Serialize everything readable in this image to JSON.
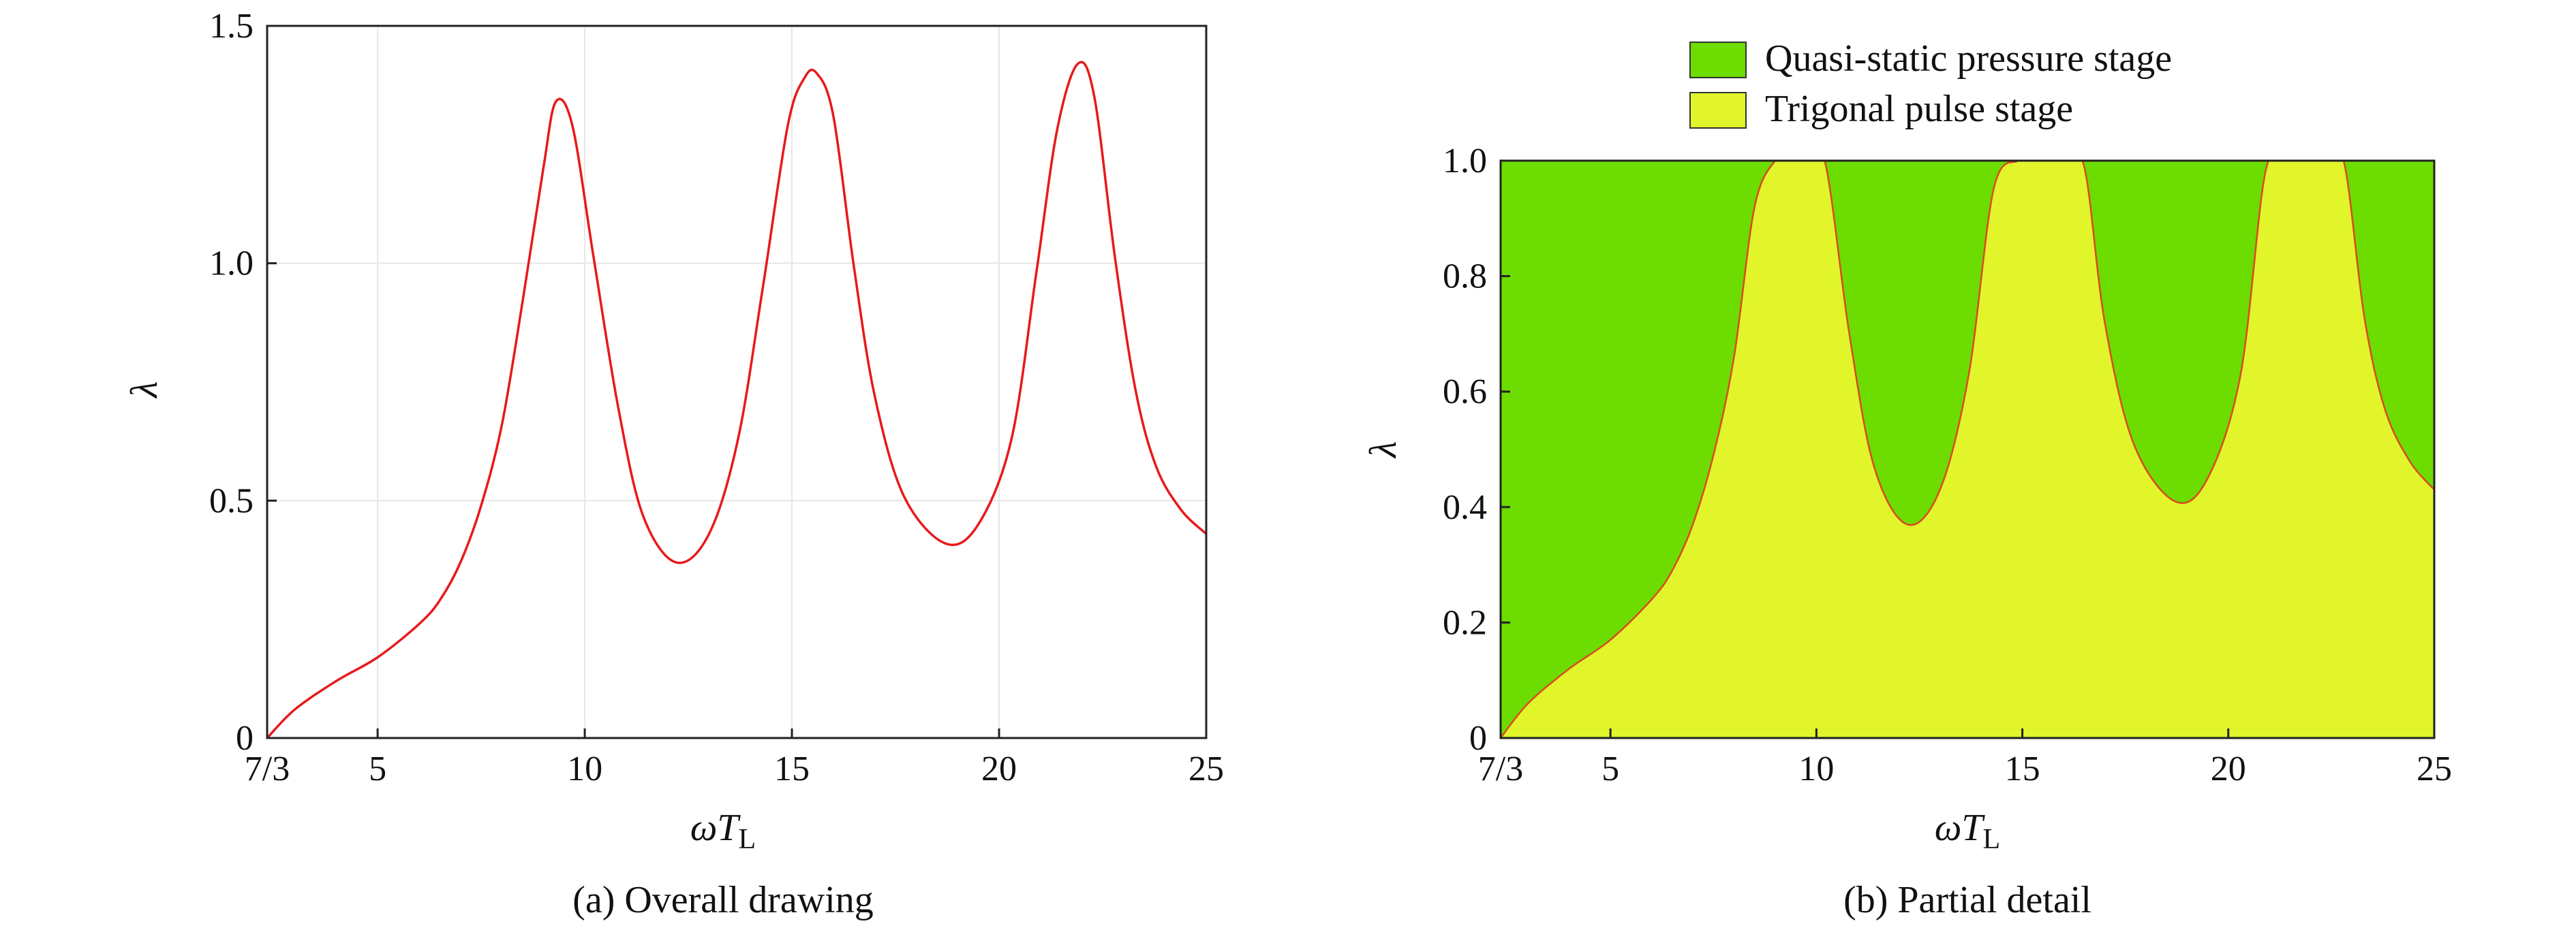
{
  "chart_data": [
    {
      "type": "line",
      "caption": "(a) Overall drawing",
      "xlabel_main": "ωT",
      "xlabel_sub": "L",
      "ylabel": "λ",
      "xlim": [
        2.3333,
        25
      ],
      "ylim": [
        0,
        1.5
      ],
      "xticks": [
        {
          "v": 2.3333,
          "label": "7/3"
        },
        {
          "v": 5,
          "label": "5"
        },
        {
          "v": 10,
          "label": "10"
        },
        {
          "v": 15,
          "label": "15"
        },
        {
          "v": 20,
          "label": "20"
        },
        {
          "v": 25,
          "label": "25"
        }
      ],
      "yticks": [
        {
          "v": 0,
          "label": "0"
        },
        {
          "v": 0.5,
          "label": "0.5"
        },
        {
          "v": 1.0,
          "label": "1.0"
        },
        {
          "v": 1.5,
          "label": "1.5"
        }
      ],
      "grid": true,
      "line_color": "#e8191b",
      "series": [
        {
          "x": [
            2.3333,
            3,
            4,
            5,
            6,
            6.5,
            7,
            7.5,
            8,
            8.5,
            9,
            9.3,
            9.7,
            10.2,
            10.8,
            11.4,
            12.2,
            13.0,
            13.7,
            14.3,
            14.9,
            15.3,
            15.6,
            16.0,
            16.5,
            17.0,
            17.7,
            18.7,
            19.5,
            20.3,
            20.9,
            21.4,
            21.9,
            22.3,
            22.8,
            23.3,
            23.8,
            24.4,
            25
          ],
          "y": [
            0,
            0.06,
            0.12,
            0.17,
            0.24,
            0.29,
            0.37,
            0.49,
            0.66,
            0.92,
            1.2,
            1.34,
            1.29,
            1.02,
            0.7,
            0.47,
            0.37,
            0.43,
            0.63,
            0.95,
            1.29,
            1.39,
            1.4,
            1.31,
            0.99,
            0.72,
            0.51,
            0.41,
            0.45,
            0.63,
            0.98,
            1.28,
            1.42,
            1.35,
            1.01,
            0.73,
            0.57,
            0.48,
            0.43
          ]
        }
      ]
    },
    {
      "type": "area",
      "caption": "(b) Partial detail",
      "xlabel_main": "ωT",
      "xlabel_sub": "L",
      "ylabel": "λ",
      "xlim": [
        2.3333,
        25
      ],
      "ylim": [
        0,
        1.0
      ],
      "xticks": [
        {
          "v": 2.3333,
          "label": "7/3"
        },
        {
          "v": 5,
          "label": "5"
        },
        {
          "v": 10,
          "label": "10"
        },
        {
          "v": 15,
          "label": "15"
        },
        {
          "v": 20,
          "label": "20"
        },
        {
          "v": 25,
          "label": "25"
        }
      ],
      "yticks": [
        {
          "v": 0,
          "label": "0"
        },
        {
          "v": 0.2,
          "label": "0.2"
        },
        {
          "v": 0.4,
          "label": "0.4"
        },
        {
          "v": 0.6,
          "label": "0.6"
        },
        {
          "v": 0.8,
          "label": "0.8"
        },
        {
          "v": 1.0,
          "label": "1.0"
        }
      ],
      "grid": false,
      "legend_position": "top",
      "series": [
        {
          "name": "Quasi-static pressure stage",
          "color": "#6ddc00"
        },
        {
          "name": "Trigonal pulse stage",
          "color": "#e1f52a"
        }
      ],
      "boundary_color": "#d84a1e"
    }
  ]
}
